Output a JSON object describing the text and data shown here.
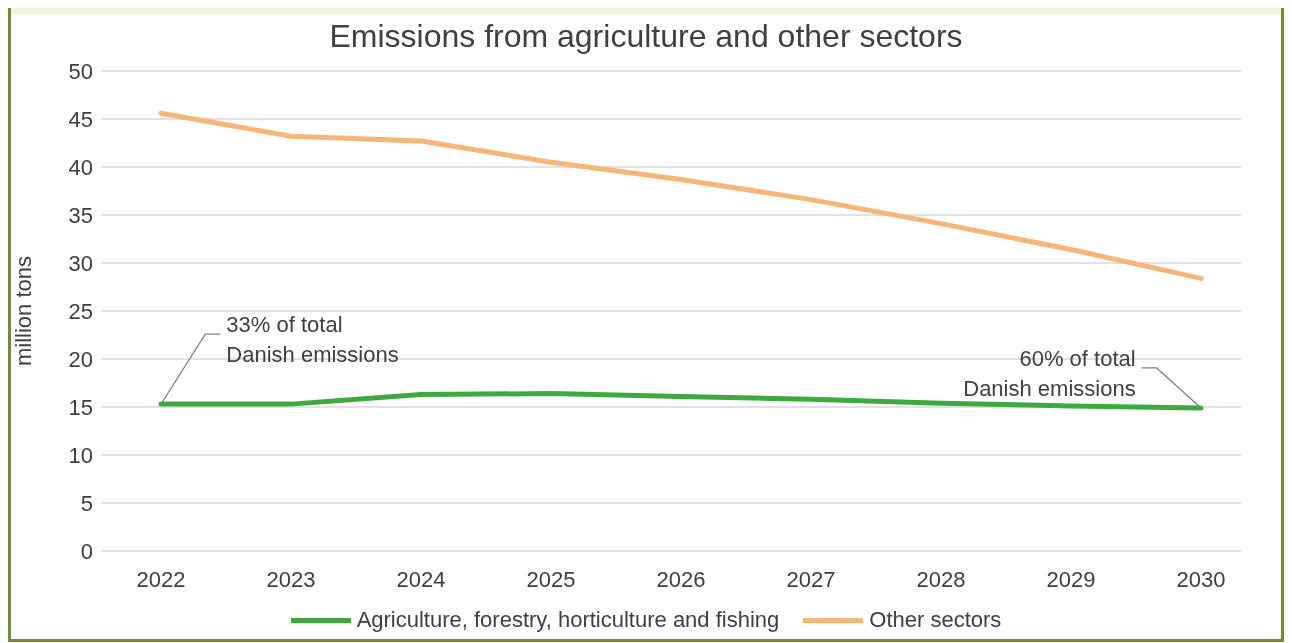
{
  "chart_data": {
    "type": "line",
    "title": "Emissions from agriculture and other sectors",
    "ylabel": "million tons",
    "categories": [
      "2022",
      "2023",
      "2024",
      "2025",
      "2026",
      "2027",
      "2028",
      "2029",
      "2030"
    ],
    "series": [
      {
        "name": "Agriculture, forestry, horticulture and fishing",
        "color": "#3daa3f",
        "values": [
          15.3,
          15.3,
          16.3,
          16.4,
          16.1,
          15.8,
          15.4,
          15.1,
          14.9
        ]
      },
      {
        "name": "Other sectors",
        "color": "#f8b578",
        "values": [
          45.6,
          43.2,
          42.7,
          40.5,
          38.7,
          36.6,
          34.1,
          31.4,
          28.4
        ]
      }
    ],
    "ylim": [
      0,
      50
    ],
    "yticks": [
      0,
      5,
      10,
      15,
      20,
      25,
      30,
      35,
      40,
      45,
      50
    ],
    "grid": "y",
    "legend": "bottom",
    "marker": "none",
    "line_style": "solid",
    "annotations": [
      {
        "text": "33% of total\nDanish emissions",
        "x": "2022",
        "y": 15.3
      },
      {
        "text": "60% of total\nDanish emissions",
        "x": "2030",
        "y": 14.9
      }
    ]
  }
}
